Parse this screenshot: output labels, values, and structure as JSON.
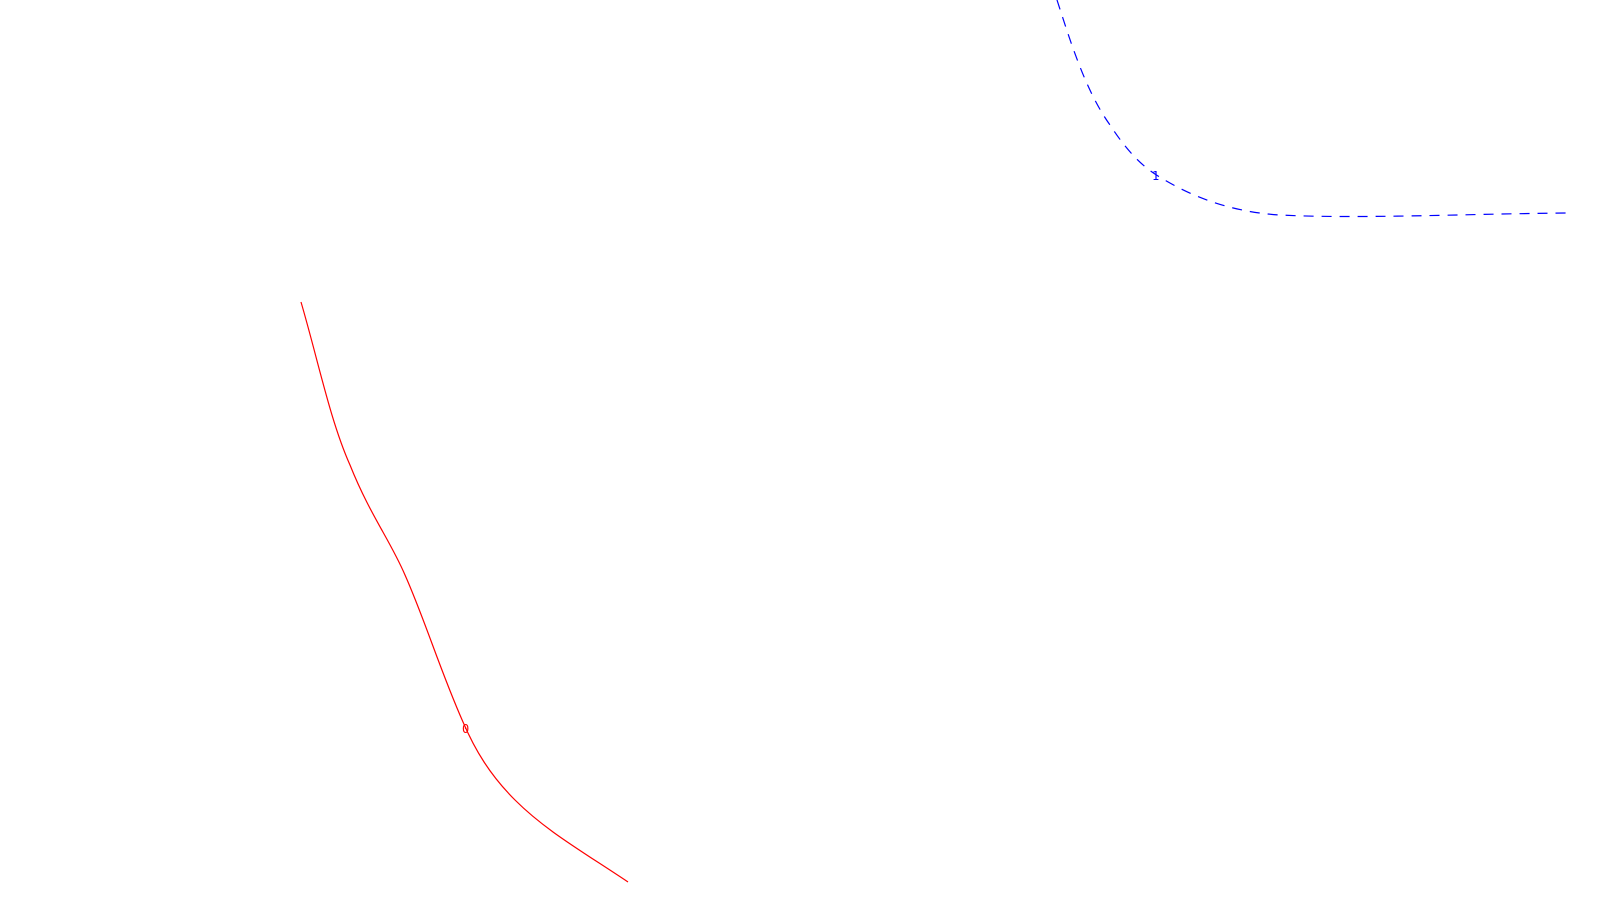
{
  "curves": [
    {
      "id": "red",
      "label": "0",
      "color": "#ff0000",
      "style": "solid"
    },
    {
      "id": "blue",
      "label": "1",
      "color": "#0000ff",
      "style": "dashed"
    }
  ]
}
